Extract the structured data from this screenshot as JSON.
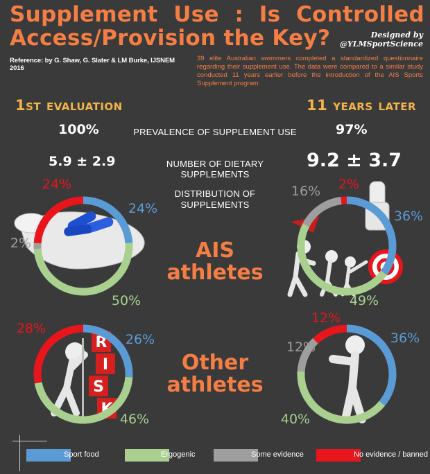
{
  "header": {
    "title_line1": "Supplement Use : Is Controlled",
    "title_line2": "Access/Provision the Key?",
    "credit_line1": "Designed by",
    "credit_line2": "@YLMSportScience",
    "reference": "Reference: by G. Shaw, G. Slater & LM Burke, IJSNEM 2016",
    "description": "39 elite Australian swimmers completed a standardized questionnaire regarding their supplement use. The data were compared to a similar study conducted 11 years earlier before the introduction of the AIS Sports Supplement program"
  },
  "evaluations": {
    "first": "1st evaluation",
    "later": "11 years later"
  },
  "rows": {
    "prevalence_label": "PREVALENCE OF SUPPLEMENT USE",
    "prevalence_first": "100%",
    "prevalence_later": "97%",
    "number_label": "NUMBER OF DIETARY SUPPLEMENTS",
    "number_first": "5.9 ± 2.9",
    "number_later": "9.2 ± 3.7",
    "distribution_label_line1": "DISTRIBUTION OF",
    "distribution_label_line2": "SUPPLEMENTS"
  },
  "groups": {
    "ais_line1": "AIS",
    "ais_line2": "athletes",
    "other_line1": "Other",
    "other_line2": "athletes"
  },
  "colors": {
    "sport_food": "#5b9bd5",
    "ergogenic": "#a9d08e",
    "some_evidence": "#9e9e9e",
    "no_evidence": "#e8151c",
    "orange": "#f47e44",
    "gold": "#f2b44a"
  },
  "legend": [
    {
      "label": "Sport food",
      "color": "#5b9bd5"
    },
    {
      "label": "Ergogenic",
      "color": "#a9d08e"
    },
    {
      "label": "Some evidence",
      "color": "#9e9e9e"
    },
    {
      "label": "No evidence / banned",
      "color": "#e8151c"
    }
  ],
  "chart_data": [
    {
      "type": "pie",
      "group": "AIS athletes",
      "evaluation": "1st evaluation",
      "categories": [
        "Sport food",
        "Ergogenic",
        "Some evidence",
        "No evidence / banned"
      ],
      "values": [
        24,
        50,
        2,
        24
      ],
      "labels": [
        "24%",
        "50%",
        "2%",
        "24%"
      ]
    },
    {
      "type": "pie",
      "group": "AIS athletes",
      "evaluation": "11 years later",
      "categories": [
        "Sport food",
        "Ergogenic",
        "Some evidence",
        "No evidence / banned"
      ],
      "values": [
        36,
        49,
        16,
        2
      ],
      "labels": [
        "36%",
        "49%",
        "16%",
        "2%"
      ]
    },
    {
      "type": "pie",
      "group": "Other athletes",
      "evaluation": "1st evaluation",
      "categories": [
        "Sport food",
        "Ergogenic",
        "Some evidence",
        "No evidence / banned"
      ],
      "values": [
        26,
        46,
        0,
        28
      ],
      "labels": [
        "26%",
        "46%",
        "",
        "28%"
      ]
    },
    {
      "type": "pie",
      "group": "Other athletes",
      "evaluation": "11 years later",
      "categories": [
        "Sport food",
        "Ergogenic",
        "Some evidence",
        "No evidence / banned"
      ],
      "values": [
        36,
        40,
        12,
        12
      ],
      "labels": [
        "36%",
        "40%",
        "12%",
        "12%"
      ]
    }
  ]
}
